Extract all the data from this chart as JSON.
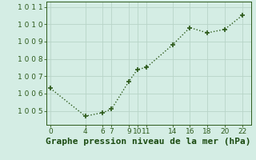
{
  "x": [
    0,
    4,
    6,
    7,
    9,
    10,
    11,
    14,
    16,
    18,
    20,
    22
  ],
  "y": [
    1006.3,
    1004.7,
    1004.9,
    1005.1,
    1006.7,
    1007.4,
    1007.5,
    1008.8,
    1009.8,
    1009.5,
    1009.7,
    1010.5
  ],
  "xlim": [
    -0.5,
    23
  ],
  "ylim": [
    1004.2,
    1011.3
  ],
  "xticks": [
    0,
    4,
    6,
    7,
    9,
    10,
    11,
    14,
    16,
    18,
    20,
    22
  ],
  "yticks": [
    1005,
    1006,
    1007,
    1008,
    1009,
    1010,
    1011
  ],
  "ytick_labels": [
    "1 0 0 5",
    "1 0 0 6",
    "1 0 0 7",
    "1 0 0 8",
    "1 0 0 9",
    "1 0 1 0",
    "1 0 1 1"
  ],
  "line_color": "#2d5a1b",
  "marker_color": "#2d5a1b",
  "bg_color": "#d4ede4",
  "grid_color": "#b8d4c8",
  "xlabel": "Graphe pression niveau de la mer (hPa)",
  "xlabel_color": "#1a4a10",
  "tick_fontsize": 6.5,
  "xlabel_fontsize": 8
}
